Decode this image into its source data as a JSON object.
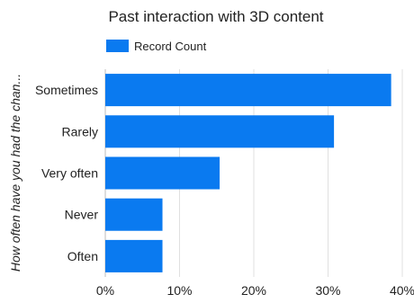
{
  "chart_data": {
    "type": "bar",
    "orientation": "horizontal",
    "title": "Past interaction with 3D content",
    "ylabel": "How often have you had the chan...",
    "xlabel": "",
    "categories": [
      "Sometimes",
      "Rarely",
      "Very often",
      "Never",
      "Often"
    ],
    "series": [
      {
        "name": "Record Count",
        "values": [
          38.5,
          30.8,
          15.4,
          7.7,
          7.7
        ],
        "color": "#0a7af0"
      }
    ],
    "xlim": [
      0,
      40
    ],
    "xticks": [
      "0%",
      "10%",
      "20%",
      "30%",
      "40%"
    ],
    "grid": true,
    "legend_position": "top-left"
  }
}
